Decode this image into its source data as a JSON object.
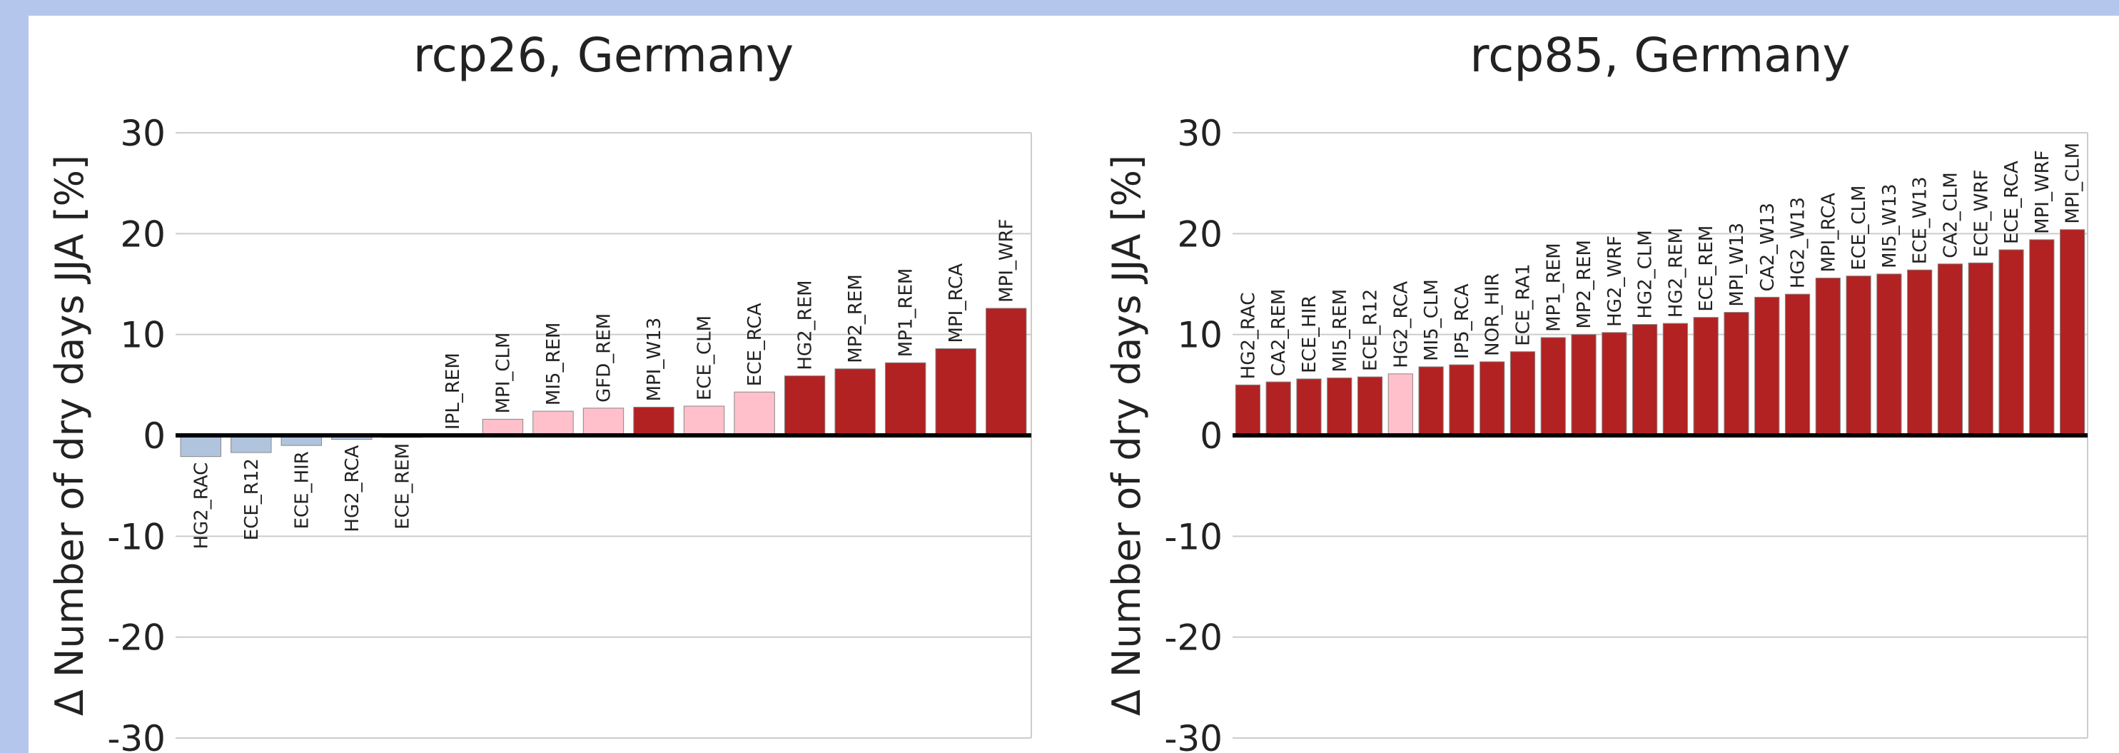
{
  "chart_data": [
    {
      "type": "bar",
      "title": "rcp26, Germany",
      "y_label": "Δ Number of dry days JJA [%]",
      "categories": [
        "HG2_RAC",
        "ECE_R12",
        "ECE_HIR",
        "HG2_RCA",
        "ECE_REM",
        "IPL_REM",
        "MPI_CLM",
        "MI5_REM",
        "GFD_REM",
        "MPI_W13",
        "ECE_CLM",
        "ECE_RCA",
        "HG2_REM",
        "MP2_REM",
        "MP1_REM",
        "MPI_RCA",
        "MPI_WRF"
      ],
      "values": [
        -2.1,
        -1.7,
        -1.0,
        -0.4,
        -0.2,
        0.0,
        1.6,
        2.4,
        2.7,
        2.8,
        2.9,
        4.3,
        5.9,
        6.6,
        7.2,
        8.6,
        12.6
      ],
      "colors": [
        "#b0c4de",
        "#b0c4de",
        "#b0c4de",
        "#b0c4de",
        "#b0c4de",
        "#ffc0cb",
        "#ffc0cb",
        "#ffc0cb",
        "#ffc0cb",
        "#b22222",
        "#ffc0cb",
        "#ffc0cb",
        "#b22222",
        "#b22222",
        "#b22222",
        "#b22222",
        "#b22222"
      ],
      "ylim": [
        -30,
        30
      ],
      "yticks": [
        -30,
        -20,
        -10,
        0,
        10,
        20,
        30
      ],
      "grid": true
    },
    {
      "type": "bar",
      "title": "rcp85, Germany",
      "y_label": "Δ Number of dry days JJA [%]",
      "categories": [
        "HG2_RAC",
        "CA2_REM",
        "ECE_HIR",
        "MI5_REM",
        "ECE_R12",
        "HG2_RCA",
        "MI5_CLM",
        "IP5_RCA",
        "NOR_HIR",
        "ECE_RA1",
        "MP1_REM",
        "MP2_REM",
        "HG2_WRF",
        "HG2_CLM",
        "HG2_REM",
        "ECE_REM",
        "MPI_W13",
        "CA2_W13",
        "HG2_W13",
        "MPI_RCA",
        "ECE_CLM",
        "MI5_W13",
        "ECE_W13",
        "CA2_CLM",
        "ECE_WRF",
        "ECE_RCA",
        "MPI_WRF",
        "MPI_CLM"
      ],
      "values": [
        5.0,
        5.3,
        5.6,
        5.7,
        5.8,
        6.1,
        6.8,
        7.0,
        7.3,
        8.3,
        9.7,
        10.0,
        10.2,
        11.0,
        11.1,
        11.7,
        12.2,
        13.7,
        14.0,
        15.6,
        15.8,
        16.0,
        16.4,
        17.0,
        17.1,
        18.4,
        19.4,
        20.4
      ],
      "colors": [
        "#b22222",
        "#b22222",
        "#b22222",
        "#b22222",
        "#b22222",
        "#ffc0cb",
        "#b22222",
        "#b22222",
        "#b22222",
        "#b22222",
        "#b22222",
        "#b22222",
        "#b22222",
        "#b22222",
        "#b22222",
        "#b22222",
        "#b22222",
        "#b22222",
        "#b22222",
        "#b22222",
        "#b22222",
        "#b22222",
        "#b22222",
        "#b22222",
        "#b22222",
        "#b22222",
        "#b22222",
        "#b22222"
      ],
      "ylim": [
        -30,
        30
      ],
      "yticks": [
        -30,
        -20,
        -10,
        0,
        10,
        20,
        30
      ],
      "grid": true
    }
  ]
}
